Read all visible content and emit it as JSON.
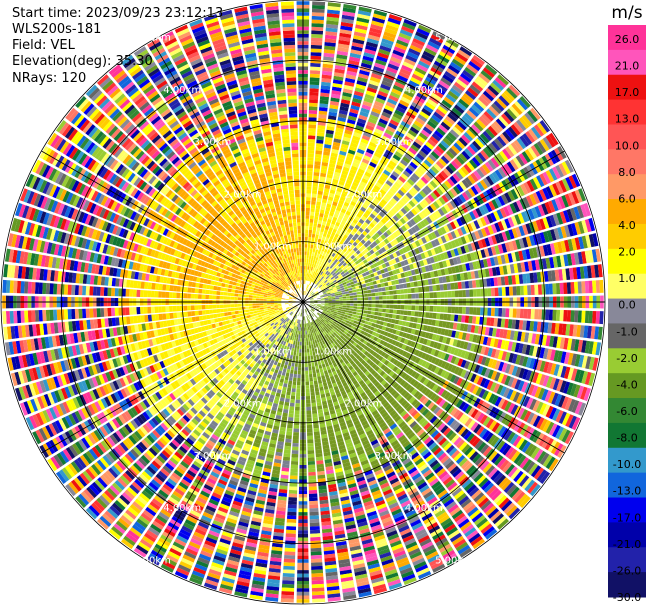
{
  "header": {
    "start_time_label": "Start time: 2023/09/23 23:12:13",
    "instrument": "WLS200s-181",
    "field": "Field: VEL",
    "elevation": "Elevation(deg): 35.30",
    "nrays": "NRays: 120"
  },
  "chart_data": {
    "type": "heatmap",
    "subtype": "ppi-polar",
    "field": "VEL",
    "units": "m/s",
    "n_rays": 120,
    "range_rings_km": [
      1.0,
      2.0,
      3.0,
      4.0,
      5.0
    ],
    "range_labels": [
      "1.00km",
      "2.00km",
      "3.00km",
      "4.00km",
      "5.00km"
    ],
    "max_range_km": 5.0,
    "radial_spokes_deg": [
      0,
      30,
      60,
      90,
      120,
      150,
      180,
      210,
      240,
      270,
      300,
      330
    ],
    "colorbar": {
      "label": "m/s",
      "ticks": [
        "26.0",
        "21.0",
        "17.0",
        "13.0",
        "10.0",
        "8.0",
        "6.0",
        "4.0",
        "2.0",
        "1.0",
        "0.0",
        "-1.0",
        "-2.0",
        "-4.0",
        "-6.0",
        "-8.0",
        "-10.0",
        "-13.0",
        "-17.0",
        "-21.0",
        "-26.0",
        "-30.0"
      ],
      "colors": [
        "#ff3399",
        "#ff55bb",
        "#ee1111",
        "#ff3333",
        "#ff5555",
        "#ff7766",
        "#ff9966",
        "#ffaa00",
        "#ffcc00",
        "#ffff00",
        "#ffff66",
        "#888899",
        "#666666",
        "#99cc33",
        "#669922",
        "#338833",
        "#117733",
        "#3399cc",
        "#1166dd",
        "#0000ee",
        "#0000aa",
        "#2222aa",
        "#111166"
      ]
    },
    "regions": [
      {
        "range_km": [
          0.0,
          2.5
        ],
        "dominant": "weak positive (yellow) to north-west, weak negative (green) to south-east"
      },
      {
        "range_km": [
          2.5,
          3.0
        ],
        "dominant": "mixed weak values with noise"
      },
      {
        "range_km": [
          3.0,
          5.0
        ],
        "dominant": "noise (random colours)"
      }
    ]
  }
}
